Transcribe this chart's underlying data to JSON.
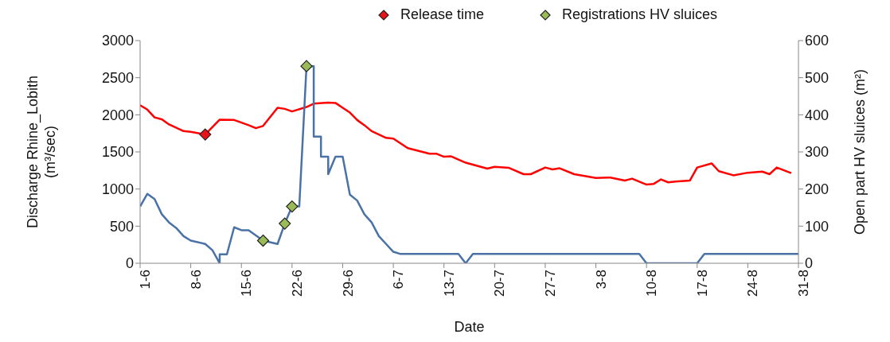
{
  "chart_data": {
    "type": "line",
    "xlabel": "Date",
    "ylabel": "Discharge Rhine_Lobith (m³/sec)",
    "y2label": "Open part HV sluices (m²)",
    "xlim": [
      "--06-01",
      "--08-31"
    ],
    "xticks": [
      {
        "value": "--06-01",
        "label": "1-6"
      },
      {
        "value": "--06-08",
        "label": "8-6"
      },
      {
        "value": "--06-15",
        "label": "15-6"
      },
      {
        "value": "--06-22",
        "label": "22-6"
      },
      {
        "value": "--06-29",
        "label": "29-6"
      },
      {
        "value": "--07-06",
        "label": "6-7"
      },
      {
        "value": "--07-13",
        "label": "13-7"
      },
      {
        "value": "--07-20",
        "label": "20-7"
      },
      {
        "value": "--07-27",
        "label": "27-7"
      },
      {
        "value": "--08-03",
        "label": "3-8"
      },
      {
        "value": "--08-10",
        "label": "10-8"
      },
      {
        "value": "--08-17",
        "label": "17-8"
      },
      {
        "value": "--08-24",
        "label": "24-8"
      },
      {
        "value": "--08-31",
        "label": "31-8"
      }
    ],
    "ylim": [
      0,
      3000
    ],
    "yticks": [
      0,
      500,
      1000,
      1500,
      2000,
      2500,
      3000
    ],
    "y2lim": [
      0,
      600
    ],
    "y2ticks": [
      0,
      100,
      200,
      300,
      400,
      500,
      600
    ],
    "grid": false,
    "legend": "top",
    "line_style": "solid",
    "series": [
      {
        "type": "line",
        "axis": "y",
        "color": "#ff0000",
        "marker": "none",
        "x": [
          "--06-01",
          "--06-02",
          "--06-03",
          "--06-04",
          "--06-05",
          "--06-07",
          "--06-08",
          "--06-10",
          "--06-12",
          "--06-14",
          "--06-16",
          "--06-17",
          "--06-18",
          "--06-20",
          "--06-21",
          "--06-22",
          "--06-24",
          "--06-25",
          "--06-27",
          "--06-28",
          "--06-29",
          "--06-30",
          "--07-01",
          "--07-02",
          "--07-03",
          "--07-05",
          "--07-06",
          "--07-08",
          "--07-11",
          "--07-12",
          "--07-13",
          "--07-14",
          "--07-16",
          "--07-19",
          "--07-20",
          "--07-22",
          "--07-24",
          "--07-25",
          "--07-27",
          "--07-28",
          "--07-29",
          "--07-31",
          "--08-03",
          "--08-05",
          "--08-07",
          "--08-08",
          "--08-10",
          "--08-11",
          "--08-12",
          "--08-13",
          "--08-14",
          "--08-16",
          "--08-17",
          "--08-19",
          "--08-20",
          "--08-22",
          "--08-24",
          "--08-26",
          "--08-27",
          "--08-28",
          "--08-30"
        ],
        "values": [
          2130,
          2070,
          1965,
          1940,
          1870,
          1780,
          1770,
          1735,
          1935,
          1930,
          1860,
          1820,
          1850,
          2095,
          2080,
          2045,
          2105,
          2150,
          2165,
          2160,
          2095,
          2030,
          1930,
          1860,
          1780,
          1690,
          1680,
          1550,
          1475,
          1475,
          1435,
          1440,
          1355,
          1275,
          1300,
          1285,
          1200,
          1200,
          1290,
          1265,
          1280,
          1200,
          1150,
          1155,
          1115,
          1140,
          1060,
          1070,
          1130,
          1090,
          1100,
          1115,
          1290,
          1345,
          1240,
          1185,
          1220,
          1235,
          1200,
          1290,
          1215
        ]
      },
      {
        "type": "line",
        "axis": "y2",
        "color": "#4a72a6",
        "marker": "none",
        "x": [
          "--06-01",
          "--06-02",
          "--06-03",
          "--06-04",
          "--06-05",
          "--06-06",
          "--06-07",
          "--06-08",
          "--06-10",
          "--06-11",
          "--06-12",
          "--06-12",
          "--06-13",
          "--06-14",
          "--06-15",
          "--06-16",
          "--06-18",
          "--06-20",
          "--06-21",
          "--06-22",
          "--06-23",
          "--06-24",
          "--06-25",
          "--06-25",
          "--06-26",
          "--06-26",
          "--06-27",
          "--06-27",
          "--06-28",
          "--06-29",
          "--06-30",
          "--07-01",
          "--07-02",
          "--07-03",
          "--07-04",
          "--07-05",
          "--07-06",
          "--07-07",
          "--07-15",
          "--07-16",
          "--07-17",
          "--08-09",
          "--08-10",
          "--08-17",
          "--08-18",
          "--08-31"
        ],
        "values": [
          153,
          187,
          173,
          132,
          110,
          95,
          73,
          61,
          52,
          35,
          0,
          24,
          24,
          97,
          89,
          89,
          61,
          52,
          107,
          153,
          153,
          531,
          531,
          341,
          341,
          287,
          287,
          240,
          287,
          287,
          185,
          169,
          132,
          110,
          73,
          52,
          31,
          25,
          25,
          0,
          25,
          25,
          0,
          0,
          25,
          25
        ]
      },
      {
        "type": "scatter",
        "axis": "y",
        "name": "Release time",
        "color": "#e8141a",
        "marker": "diamond",
        "x": [
          "--06-10"
        ],
        "values": [
          1735
        ]
      },
      {
        "type": "scatter",
        "axis": "y2",
        "name": "Registrations HV sluices",
        "color": "#9bbb59",
        "marker": "diamond",
        "x": [
          "--06-18",
          "--06-21",
          "--06-22",
          "--06-24"
        ],
        "values": [
          61,
          107,
          153,
          531
        ]
      }
    ]
  }
}
